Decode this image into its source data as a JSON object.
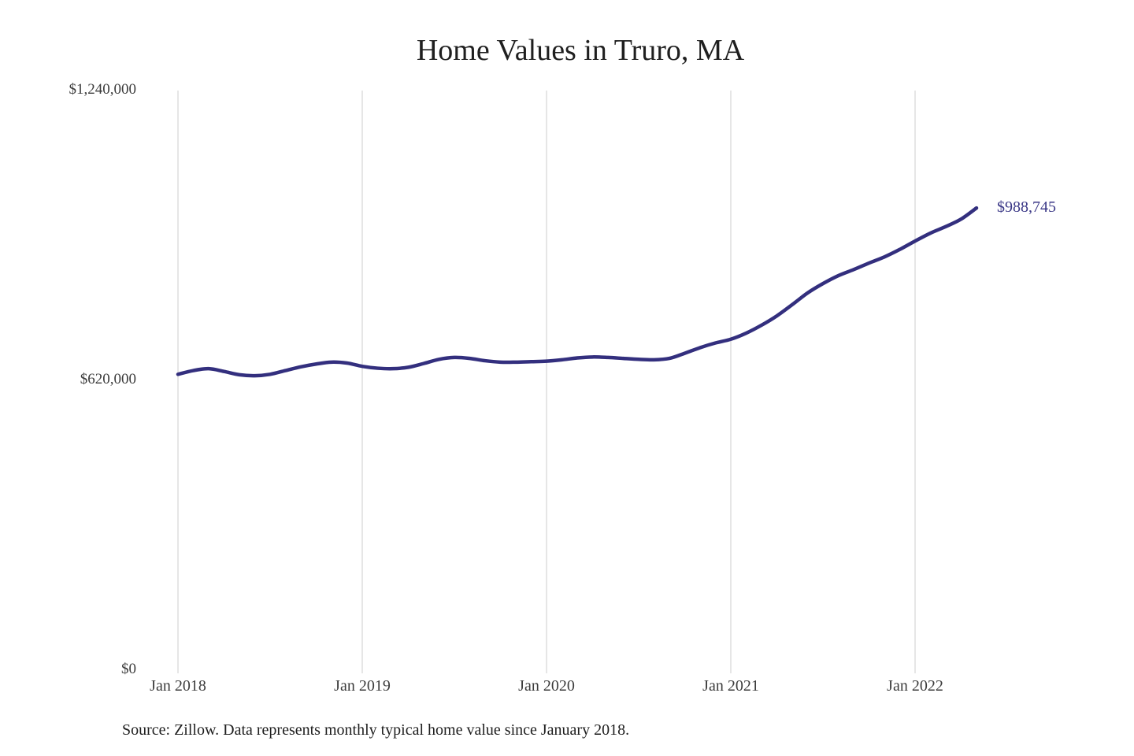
{
  "title": "Home Values in Truro, MA",
  "source_note": "Source: Zillow. Data represents monthly typical home value since January 2018.",
  "end_label": "$988,745",
  "colors": {
    "line": "#332f7e",
    "end_label": "#3a3786",
    "gridline": "#cccccc",
    "axis_text": "#3c3c3c",
    "title_text": "#1f1f1f",
    "background": "#ffffff"
  },
  "chart_data": {
    "type": "line",
    "title": "Home Values in Truro, MA",
    "unit": "USD",
    "frequency": "monthly",
    "x": [
      "Jan 2018",
      "Feb 2018",
      "Mar 2018",
      "Apr 2018",
      "May 2018",
      "Jun 2018",
      "Jul 2018",
      "Aug 2018",
      "Sep 2018",
      "Oct 2018",
      "Nov 2018",
      "Dec 2018",
      "Jan 2019",
      "Feb 2019",
      "Mar 2019",
      "Apr 2019",
      "May 2019",
      "Jun 2019",
      "Jul 2019",
      "Aug 2019",
      "Sep 2019",
      "Oct 2019",
      "Nov 2019",
      "Dec 2019",
      "Jan 2020",
      "Feb 2020",
      "Mar 2020",
      "Apr 2020",
      "May 2020",
      "Jun 2020",
      "Jul 2020",
      "Aug 2020",
      "Sep 2020",
      "Oct 2020",
      "Nov 2020",
      "Dec 2020",
      "Jan 2021",
      "Feb 2021",
      "Mar 2021",
      "Apr 2021",
      "May 2021",
      "Jun 2021",
      "Jul 2021",
      "Aug 2021",
      "Sep 2021",
      "Oct 2021",
      "Nov 2021",
      "Dec 2021",
      "Jan 2022",
      "Feb 2022",
      "Mar 2022",
      "Apr 2022",
      "May 2022"
    ],
    "values": [
      633000,
      641000,
      645000,
      639000,
      632000,
      630000,
      633000,
      641000,
      649000,
      655000,
      659000,
      657000,
      650000,
      646000,
      645000,
      648000,
      656000,
      665000,
      669000,
      667000,
      662000,
      659000,
      659000,
      660000,
      661000,
      664000,
      668000,
      670000,
      669000,
      667000,
      665000,
      664000,
      667000,
      678000,
      690000,
      700000,
      708000,
      721000,
      738000,
      758000,
      782000,
      807000,
      827000,
      844000,
      857000,
      871000,
      884000,
      900000,
      918000,
      935000,
      949000,
      965000,
      988745
    ],
    "last_value_label": "$988,745",
    "y_ticks": [
      {
        "label": "$1,240,000",
        "value": 1240000
      },
      {
        "label": "$620,000",
        "value": 620000
      },
      {
        "label": "$0",
        "value": 0
      }
    ],
    "x_ticks": [
      "Jan 2018",
      "Jan 2019",
      "Jan 2020",
      "Jan 2021",
      "Jan 2022"
    ],
    "ylim": [
      0,
      1240000
    ],
    "grid": "vertical-only",
    "legend": "none"
  }
}
